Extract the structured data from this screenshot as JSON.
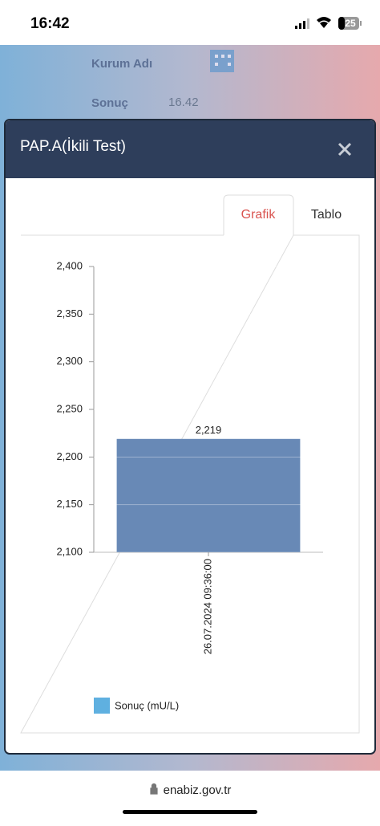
{
  "status_bar": {
    "time": "16:42",
    "battery": "25"
  },
  "background": {
    "fields": [
      {
        "label": "Kurum Adı"
      },
      {
        "label": "Sonuç",
        "value": "16.42"
      }
    ]
  },
  "modal": {
    "title": "PAP.A(İkili Test)",
    "tabs": [
      "Grafik",
      "Tablo"
    ],
    "active_tab": 0
  },
  "chart_data": {
    "type": "bar",
    "categories": [
      "26.07.2024 09:36:00"
    ],
    "series": [
      {
        "name": "Sonuç (mU/L)",
        "color": "#5fb0e0",
        "bar_color": "#6889b6",
        "values": [
          2219
        ],
        "value_labels": [
          "2,219"
        ]
      }
    ],
    "ylim": [
      2100,
      2400
    ],
    "yticks": [
      {
        "value": 2100,
        "label": "2,100"
      },
      {
        "value": 2150,
        "label": "2,150"
      },
      {
        "value": 2200,
        "label": "2,200"
      },
      {
        "value": 2250,
        "label": "2,250"
      },
      {
        "value": 2300,
        "label": "2,300"
      },
      {
        "value": 2350,
        "label": "2,350"
      },
      {
        "value": 2400,
        "label": "2,400"
      }
    ],
    "grid": true
  },
  "browser": {
    "url": "enabiz.gov.tr"
  }
}
